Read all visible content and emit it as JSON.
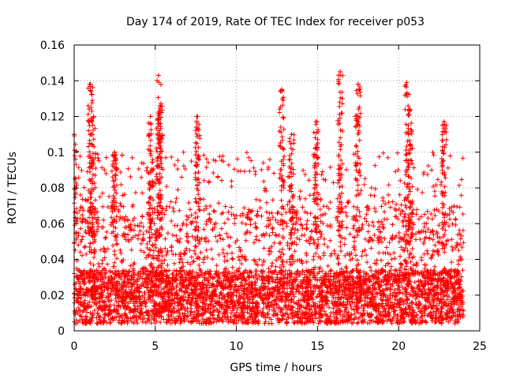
{
  "chart_data": {
    "type": "scatter",
    "title": "Day 174 of 2019, Rate Of TEC Index for receiver p053",
    "xlabel": "GPS time / hours",
    "ylabel": "ROTI / TECUs",
    "xlim": [
      0,
      25
    ],
    "ylim": [
      0,
      0.16
    ],
    "xticks": [
      0,
      5,
      10,
      15,
      20,
      25
    ],
    "xtick_labels": [
      "0",
      "5",
      "10",
      "15",
      "20",
      "25"
    ],
    "yticks": [
      0,
      0.02,
      0.04,
      0.06,
      0.08,
      0.1,
      0.12,
      0.14,
      0.16
    ],
    "ytick_labels": [
      "0",
      "0.02",
      "0.04",
      "0.06",
      "0.08",
      "0.1",
      "0.12",
      "0.14",
      "0.16"
    ],
    "grid": true,
    "marker": "+",
    "color": "#ff0000",
    "data_range": [
      0,
      24
    ],
    "point_count_approx": 5000,
    "density_note": "dense red + markers across 0-24 h, mostly 0.005-0.04 TECU with periodic spikes",
    "peaks": [
      {
        "x": 0.0,
        "y": 0.11
      },
      {
        "x": 1.0,
        "y": 0.138
      },
      {
        "x": 1.2,
        "y": 0.12
      },
      {
        "x": 2.5,
        "y": 0.1
      },
      {
        "x": 4.7,
        "y": 0.12
      },
      {
        "x": 5.2,
        "y": 0.143
      },
      {
        "x": 5.3,
        "y": 0.126
      },
      {
        "x": 7.6,
        "y": 0.12
      },
      {
        "x": 12.8,
        "y": 0.135
      },
      {
        "x": 13.4,
        "y": 0.11
      },
      {
        "x": 14.9,
        "y": 0.117
      },
      {
        "x": 16.4,
        "y": 0.145
      },
      {
        "x": 17.5,
        "y": 0.138
      },
      {
        "x": 20.5,
        "y": 0.139
      },
      {
        "x": 20.7,
        "y": 0.124
      },
      {
        "x": 22.8,
        "y": 0.117
      }
    ]
  }
}
